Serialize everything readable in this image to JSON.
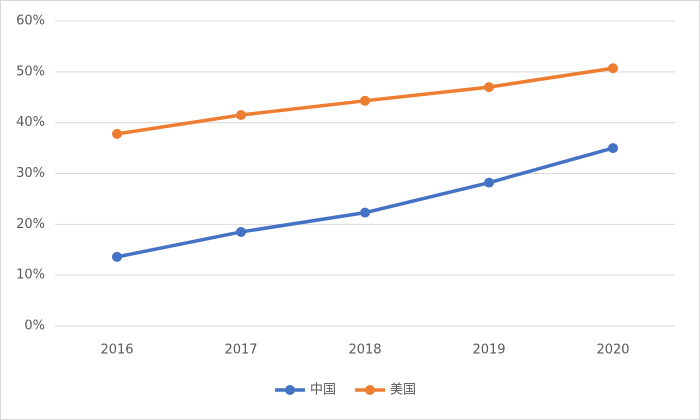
{
  "chart_data": {
    "type": "line",
    "categories": [
      "2016",
      "2017",
      "2018",
      "2019",
      "2020"
    ],
    "series": [
      {
        "name": "中国",
        "color": "#4472c4",
        "values": [
          13.6,
          18.5,
          22.3,
          28.2,
          35.0
        ]
      },
      {
        "name": "美国",
        "color": "#ed7d31",
        "values": [
          37.8,
          41.5,
          44.3,
          47.0,
          50.7
        ]
      }
    ],
    "ylim": [
      0,
      60
    ],
    "yticks": [
      {
        "value": 0,
        "label": "0%"
      },
      {
        "value": 10,
        "label": "10%"
      },
      {
        "value": 20,
        "label": "20%"
      },
      {
        "value": 30,
        "label": "30%"
      },
      {
        "value": 40,
        "label": "40%"
      },
      {
        "value": 50,
        "label": "50%"
      },
      {
        "value": 60,
        "label": "60%"
      }
    ],
    "grid": true,
    "legend": "bottom"
  }
}
